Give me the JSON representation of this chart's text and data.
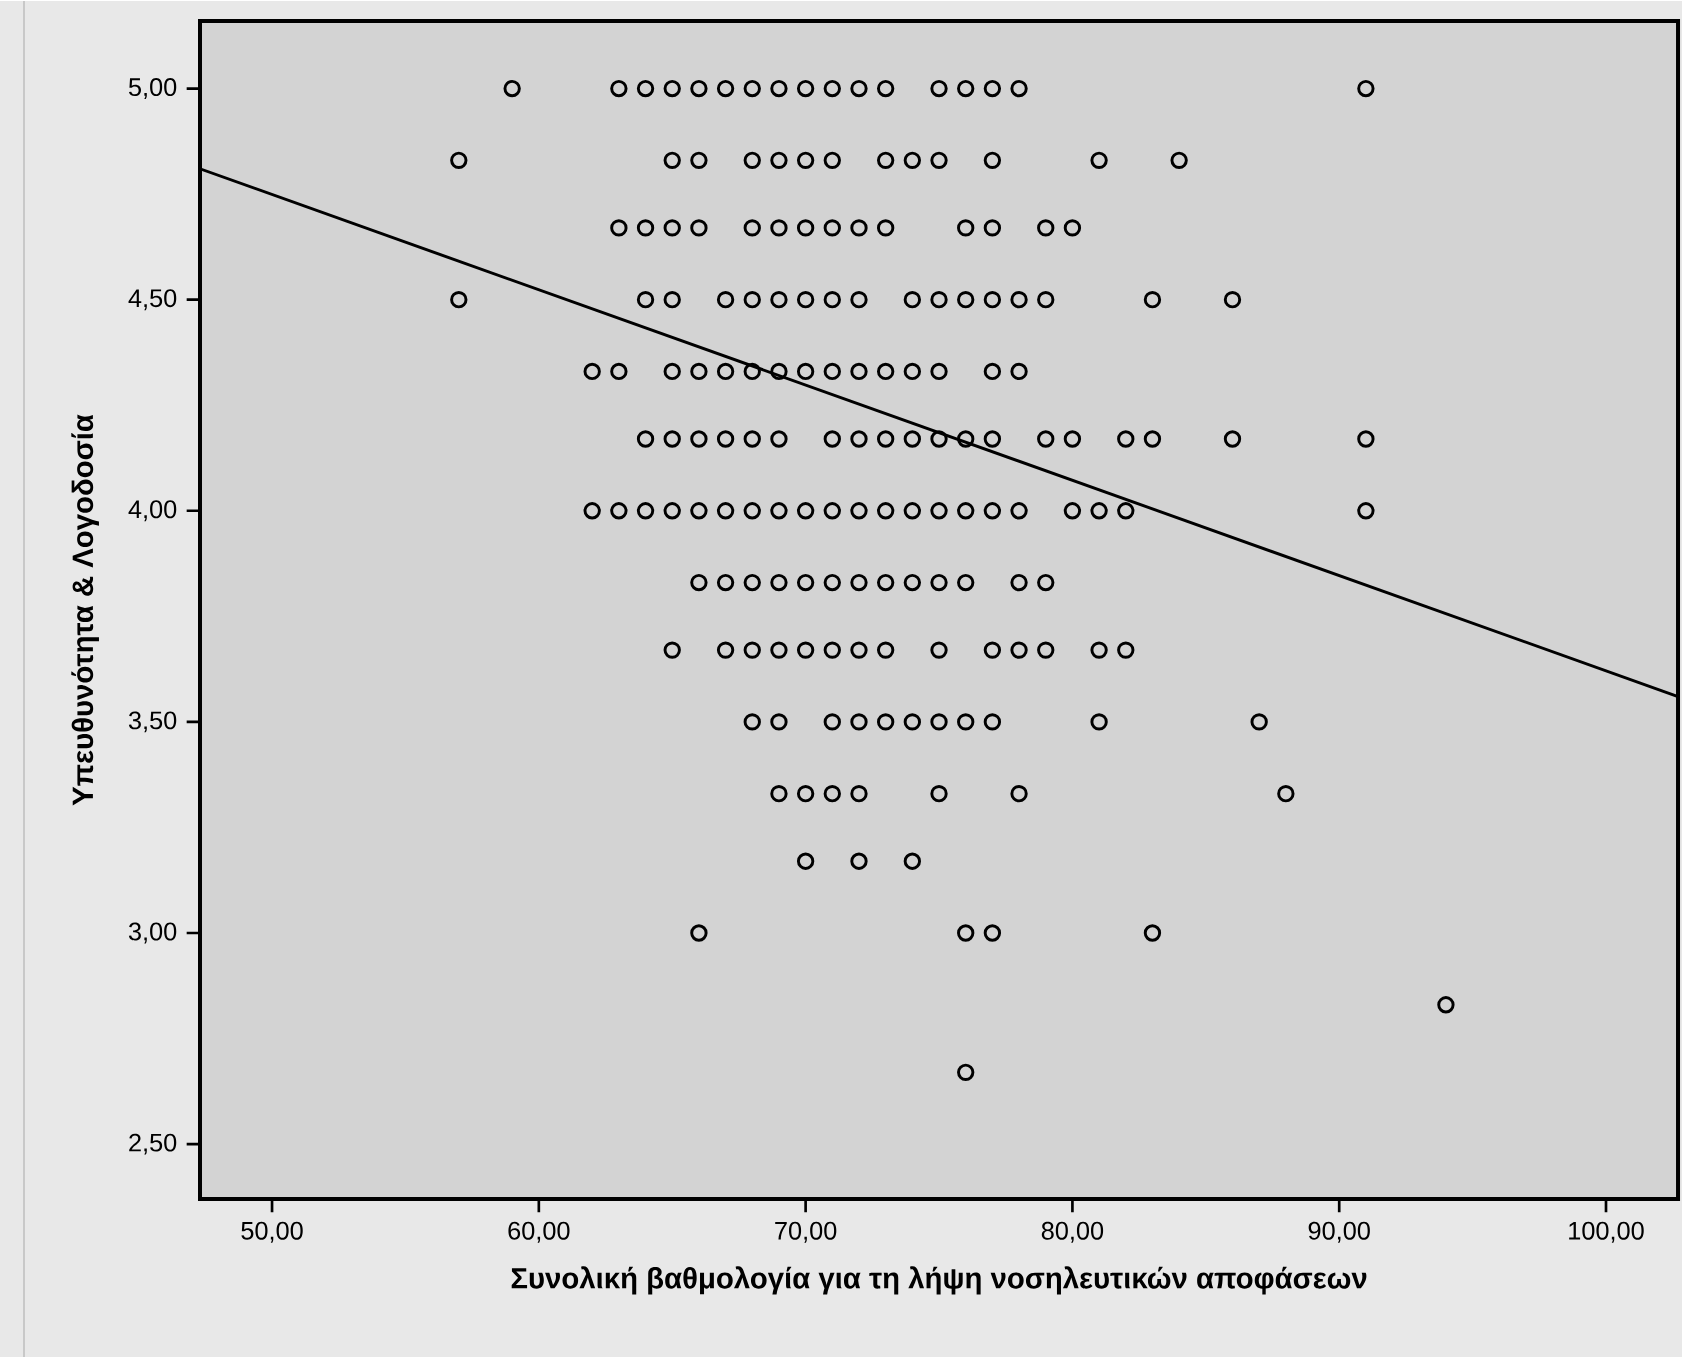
{
  "chart_data": {
    "type": "scatter",
    "xlabel": "Συνολική βαθμολογία για τη λήψη νοσηλευτικών αποφάσεων",
    "ylabel": "Υπευθυνότητα & Λογοδοσία",
    "xlim": [
      47.3,
      102.7
    ],
    "ylim": [
      2.37,
      5.16
    ],
    "xticks": [
      {
        "value": 50,
        "label": "50,00"
      },
      {
        "value": 60,
        "label": "60,00"
      },
      {
        "value": 70,
        "label": "70,00"
      },
      {
        "value": 80,
        "label": "80,00"
      },
      {
        "value": 90,
        "label": "90,00"
      },
      {
        "value": 100,
        "label": "100,00"
      }
    ],
    "yticks": [
      {
        "value": 2.5,
        "label": "2,50"
      },
      {
        "value": 3.0,
        "label": "3,00"
      },
      {
        "value": 3.5,
        "label": "3,50"
      },
      {
        "value": 4.0,
        "label": "4,00"
      },
      {
        "value": 4.5,
        "label": "4,50"
      },
      {
        "value": 5.0,
        "label": "5,00"
      }
    ],
    "series": [
      {
        "color": "#000000",
        "marker": "circle",
        "x": [
          59,
          63,
          64,
          65,
          66,
          67,
          68,
          69,
          70,
          71,
          72,
          73,
          75,
          76,
          77,
          78,
          91,
          57,
          65,
          66,
          68,
          69,
          70,
          71,
          73,
          74,
          75,
          77,
          81,
          84,
          63,
          64,
          65,
          66,
          68,
          69,
          70,
          71,
          72,
          73,
          76,
          77,
          79,
          80,
          57,
          64,
          65,
          67,
          68,
          69,
          70,
          71,
          72,
          74,
          75,
          76,
          77,
          78,
          79,
          83,
          86,
          62,
          63,
          65,
          66,
          67,
          68,
          69,
          70,
          71,
          72,
          73,
          74,
          75,
          77,
          78,
          64,
          65,
          66,
          67,
          68,
          69,
          71,
          72,
          73,
          74,
          75,
          76,
          77,
          79,
          80,
          82,
          83,
          86,
          91,
          62,
          63,
          64,
          65,
          66,
          67,
          68,
          69,
          70,
          71,
          72,
          73,
          74,
          75,
          76,
          77,
          78,
          80,
          81,
          82,
          91,
          66,
          67,
          68,
          69,
          70,
          71,
          72,
          73,
          74,
          75,
          76,
          78,
          79,
          65,
          67,
          68,
          69,
          70,
          71,
          72,
          73,
          75,
          77,
          78,
          79,
          81,
          82,
          68,
          69,
          71,
          72,
          73,
          74,
          75,
          76,
          77,
          81,
          87,
          69,
          70,
          71,
          72,
          75,
          78,
          88,
          70,
          72,
          74,
          66,
          76,
          77,
          83,
          94,
          76
        ],
        "values": [
          5,
          5,
          5,
          5,
          5,
          5,
          5,
          5,
          5,
          5,
          5,
          5,
          5,
          5,
          5,
          5,
          5,
          4.83,
          4.83,
          4.83,
          4.83,
          4.83,
          4.83,
          4.83,
          4.83,
          4.83,
          4.83,
          4.83,
          4.83,
          4.83,
          4.67,
          4.67,
          4.67,
          4.67,
          4.67,
          4.67,
          4.67,
          4.67,
          4.67,
          4.67,
          4.67,
          4.67,
          4.67,
          4.67,
          4.5,
          4.5,
          4.5,
          4.5,
          4.5,
          4.5,
          4.5,
          4.5,
          4.5,
          4.5,
          4.5,
          4.5,
          4.5,
          4.5,
          4.5,
          4.5,
          4.5,
          4.33,
          4.33,
          4.33,
          4.33,
          4.33,
          4.33,
          4.33,
          4.33,
          4.33,
          4.33,
          4.33,
          4.33,
          4.33,
          4.33,
          4.33,
          4.17,
          4.17,
          4.17,
          4.17,
          4.17,
          4.17,
          4.17,
          4.17,
          4.17,
          4.17,
          4.17,
          4.17,
          4.17,
          4.17,
          4.17,
          4.17,
          4.17,
          4.17,
          4.17,
          4,
          4,
          4,
          4,
          4,
          4,
          4,
          4,
          4,
          4,
          4,
          4,
          4,
          4,
          4,
          4,
          4,
          4,
          4,
          4,
          4,
          3.83,
          3.83,
          3.83,
          3.83,
          3.83,
          3.83,
          3.83,
          3.83,
          3.83,
          3.83,
          3.83,
          3.83,
          3.83,
          3.67,
          3.67,
          3.67,
          3.67,
          3.67,
          3.67,
          3.67,
          3.67,
          3.67,
          3.67,
          3.67,
          3.67,
          3.67,
          3.67,
          3.5,
          3.5,
          3.5,
          3.5,
          3.5,
          3.5,
          3.5,
          3.5,
          3.5,
          3.5,
          3.5,
          3.33,
          3.33,
          3.33,
          3.33,
          3.33,
          3.33,
          3.33,
          3.17,
          3.17,
          3.17,
          3,
          3,
          3,
          3,
          2.83,
          2.67
        ]
      },
      {
        "type": "line",
        "color": "#000000",
        "marker": "none",
        "x": [
          47.3,
          102.7
        ],
        "values": [
          4.81,
          3.56
        ]
      }
    ]
  }
}
